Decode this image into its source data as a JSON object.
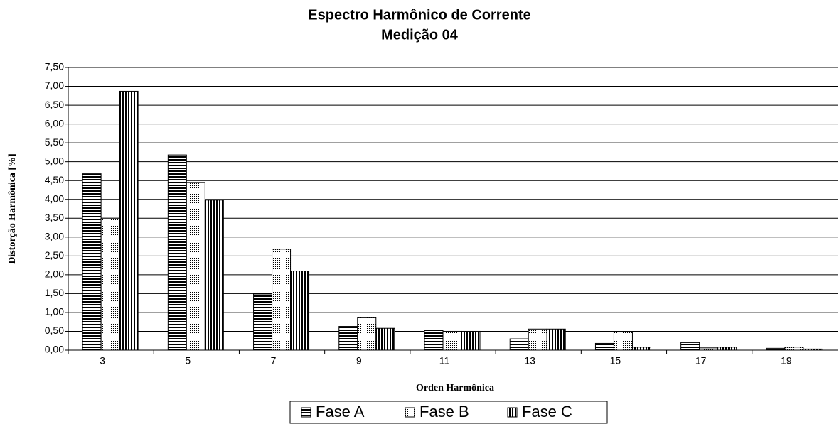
{
  "chart_data": {
    "type": "bar",
    "title": "Espectro Harmônico de Corrente",
    "subtitle": "Medição 04",
    "x_label": "Orden Harmônica",
    "y_label": "Distorção Harmônica [%]",
    "categories": [
      "3",
      "5",
      "7",
      "9",
      "11",
      "13",
      "15",
      "17",
      "19"
    ],
    "series": [
      {
        "name": "Fase A",
        "color": "#000000",
        "pattern": "horizontal",
        "values": [
          4.68,
          5.18,
          1.49,
          0.63,
          0.53,
          0.3,
          0.18,
          0.2,
          0.05
        ]
      },
      {
        "name": "Fase B",
        "color": "#000000",
        "pattern": "dots",
        "values": [
          3.5,
          4.45,
          2.68,
          0.86,
          0.5,
          0.56,
          0.48,
          0.06,
          0.08
        ]
      },
      {
        "name": "Fase C",
        "color": "#000000",
        "pattern": "vertical",
        "values": [
          6.87,
          3.98,
          2.1,
          0.58,
          0.5,
          0.56,
          0.08,
          0.08,
          0.03
        ]
      }
    ],
    "ylim": [
      0,
      7.5
    ],
    "yticks": [
      {
        "value": 0,
        "label": "0,00"
      },
      {
        "value": 0.5,
        "label": "0,50"
      },
      {
        "value": 1,
        "label": "1,00"
      },
      {
        "value": 1.5,
        "label": "1,50"
      },
      {
        "value": 2,
        "label": "2,00"
      },
      {
        "value": 2.5,
        "label": "2,50"
      },
      {
        "value": 3,
        "label": "3,00"
      },
      {
        "value": 3.5,
        "label": "3,50"
      },
      {
        "value": 4,
        "label": "4,00"
      },
      {
        "value": 4.5,
        "label": "4,50"
      },
      {
        "value": 5,
        "label": "5,00"
      },
      {
        "value": 5.5,
        "label": "5,50"
      },
      {
        "value": 6,
        "label": "6,00"
      },
      {
        "value": 6.5,
        "label": "6,50"
      },
      {
        "value": 7,
        "label": "7,00"
      },
      {
        "value": 7.5,
        "label": "7,50"
      }
    ],
    "grid": true,
    "legend": "bottom"
  }
}
